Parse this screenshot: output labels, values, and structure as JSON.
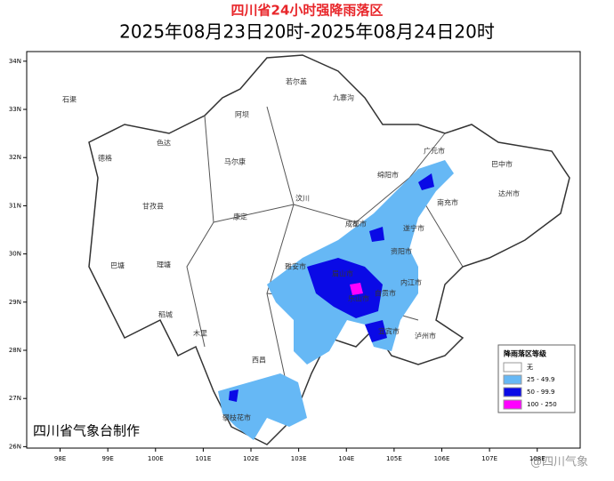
{
  "header": {
    "title": "四川省24小时强降雨落区",
    "subtitle": "2025年08月23日20时-2025年08月24日20时"
  },
  "map": {
    "xlim": [
      97.3,
      108.9
    ],
    "ylim": [
      25.97,
      34.2
    ],
    "xticks": [
      {
        "value": 98,
        "label": "98E"
      },
      {
        "value": 99,
        "label": "99E"
      },
      {
        "value": 100,
        "label": "100E"
      },
      {
        "value": 101,
        "label": "101E"
      },
      {
        "value": 102,
        "label": "102E"
      },
      {
        "value": 103,
        "label": "103E"
      },
      {
        "value": 104,
        "label": "104E"
      },
      {
        "value": 105,
        "label": "105E"
      },
      {
        "value": 106,
        "label": "106E"
      },
      {
        "value": 107,
        "label": "107E"
      },
      {
        "value": 108,
        "label": "108E"
      }
    ],
    "yticks": [
      {
        "value": 26,
        "label": "26N"
      },
      {
        "value": 27,
        "label": "27N"
      },
      {
        "value": 28,
        "label": "28N"
      },
      {
        "value": 29,
        "label": "29N"
      },
      {
        "value": 30,
        "label": "30N"
      },
      {
        "value": 31,
        "label": "31N"
      },
      {
        "value": 32,
        "label": "32N"
      },
      {
        "value": 33,
        "label": "33N"
      },
      {
        "value": 34,
        "label": "34N"
      }
    ],
    "places": [
      "石渠",
      "德格",
      "色达",
      "甘孜县",
      "阿坝",
      "若尔盖",
      "九寨沟",
      "马尔康",
      "汶川",
      "康定",
      "理塘",
      "巴塘",
      "稻城",
      "木里",
      "西昌",
      "成都市",
      "雅安市",
      "眉山市",
      "乐山市",
      "绵阳市",
      "广元市",
      "巴中市",
      "达州市",
      "南充市",
      "遂宁市",
      "资阳市",
      "内江市",
      "自贡市",
      "宜宾市",
      "泸州市",
      "攀枝花市"
    ]
  },
  "legend": {
    "title": "降雨落区等级",
    "items": [
      {
        "label": "无",
        "color": "#ffffff"
      },
      {
        "label": "25 - 49.9",
        "color": "#66b8f5"
      },
      {
        "label": "50 - 99.9",
        "color": "#0a0ae6"
      },
      {
        "label": "100 - 250",
        "color": "#ff00ff"
      }
    ]
  },
  "credit": "四川省气象台制作",
  "watermark": "@四川气象"
}
